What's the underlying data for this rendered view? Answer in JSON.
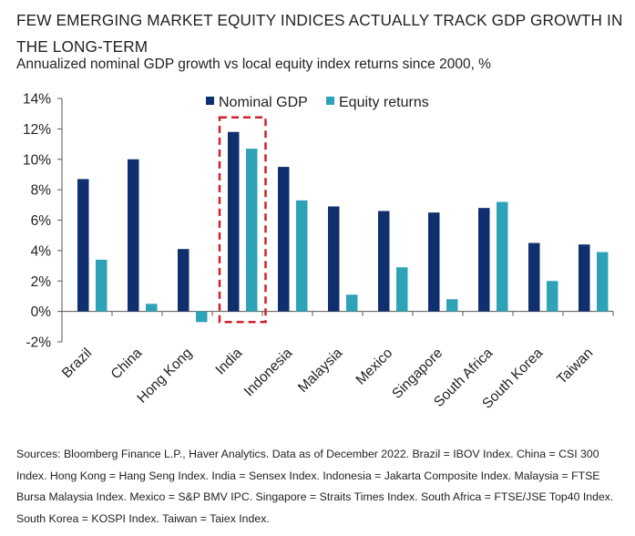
{
  "header": {
    "title": "FEW EMERGING MARKET EQUITY INDICES ACTUALLY TRACK GDP GROWTH IN THE LONG-TERM",
    "subtitle": "Annualized nominal GDP growth vs local equity index returns since 2000, %"
  },
  "footer": {
    "sources": "Sources: Bloomberg Finance L.P., Haver Analytics. Data as of December 2022. Brazil = IBOV Index. China = CSI 300 Index. Hong Kong = Hang Seng Index. India = Sensex Index. Indonesia = Jakarta Composite Index. Malaysia = FTSE Bursa Malaysia Index. Mexico = S&P BMV IPC. Singapore = Straits Times Index. South Africa = FTSE/JSE Top40 Index. South Korea = KOSPI Index. Taiwan = Taiex Index."
  },
  "chart_data": {
    "type": "bar",
    "categories": [
      "Brazil",
      "China",
      "Hong Kong",
      "India",
      "Indonesia",
      "Malaysia",
      "Mexico",
      "Singapore",
      "South Africa",
      "South Korea",
      "Taiwan"
    ],
    "series": [
      {
        "name": "Nominal GDP",
        "color": "#0f2f6e",
        "values": [
          8.7,
          10.0,
          4.1,
          11.8,
          9.5,
          6.9,
          6.6,
          6.5,
          6.8,
          4.5,
          4.4
        ]
      },
      {
        "name": "Equity returns",
        "color": "#2ea3b8",
        "values": [
          3.4,
          0.5,
          -0.7,
          10.7,
          7.3,
          1.1,
          2.9,
          0.8,
          7.2,
          2.0,
          3.9
        ]
      }
    ],
    "yticks": [
      "14%",
      "12%",
      "10%",
      "8%",
      "6%",
      "4%",
      "2%",
      "0%",
      "-2%"
    ],
    "ylim": [
      -2,
      14
    ],
    "legend_position": "top",
    "highlight": {
      "category": "India",
      "style": "dashed-red-box",
      "color": "#d0202a"
    },
    "grid": false
  }
}
